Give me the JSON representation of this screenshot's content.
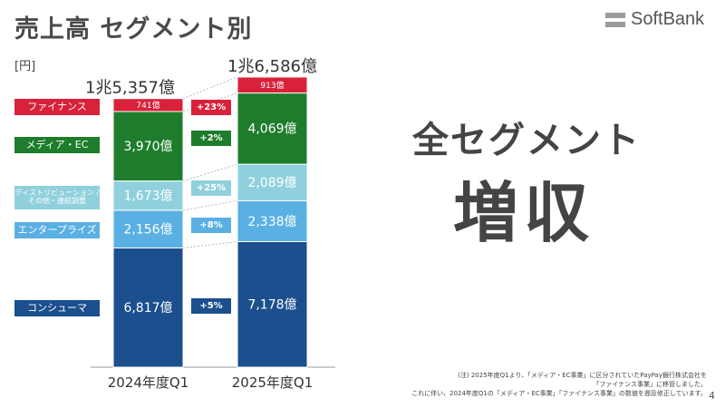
{
  "header": {
    "title": "売上高 セグメント別",
    "unit": "[円]"
  },
  "logo": {
    "text": "SoftBank"
  },
  "headline": {
    "line1": "全セグメント",
    "line2": "増収"
  },
  "note": {
    "line1": "(注) 2025年度Q1より、「メディア・EC事業」に区分されていたPayPay銀行株式会社を",
    "line2": "「ファイナンス事業」に移管しました。",
    "line3": "これに伴い、2024年度Q1の「メディア・EC事業」「ファイナンス事業」の数値を遡及修正しています。"
  },
  "page_number": "4",
  "segments": [
    {
      "label": "ファイナンス",
      "color": "#d9213a",
      "growth": "+23%"
    },
    {
      "label": "メディア・EC",
      "color": "#1e7d2c",
      "growth": "+2%"
    },
    {
      "label": "ディストリビューション / その他・連結調整",
      "label_lines": [
        "ディストリビューション /",
        "その他・連結調整"
      ],
      "color": "#8fd0dc",
      "growth": "+25%"
    },
    {
      "label": "エンタープライズ",
      "color": "#5ab0e2",
      "growth": "+8%"
    },
    {
      "label": "コンシューマ",
      "color": "#1b4f8e",
      "growth": "+5%"
    }
  ],
  "chart_data": {
    "type": "bar",
    "stacked": true,
    "categories": [
      "2024年度Q1",
      "2025年度Q1"
    ],
    "totals": [
      15357,
      16586
    ],
    "total_labels": [
      "1兆5,357億",
      "1兆6,586億"
    ],
    "series": [
      {
        "name": "コンシューマ",
        "values": [
          6817,
          7178
        ],
        "labels": [
          "6,817億",
          "7,178億"
        ],
        "color": "#1b4f8e",
        "text_color": "#ffffff"
      },
      {
        "name": "エンタープライズ",
        "values": [
          2156,
          2338
        ],
        "labels": [
          "2,156億",
          "2,338億"
        ],
        "color": "#5ab0e2",
        "text_color": "#ffffff"
      },
      {
        "name": "ディストリビューション / その他・連結調整",
        "values": [
          1673,
          2089
        ],
        "labels": [
          "1,673億",
          "2,089億"
        ],
        "color": "#8fd0dc",
        "text_color": "#ffffff"
      },
      {
        "name": "メディア・EC",
        "values": [
          3970,
          4069
        ],
        "labels": [
          "3,970億",
          "4,069億"
        ],
        "color": "#1e7d2c",
        "text_color": "#ffffff"
      },
      {
        "name": "ファイナンス",
        "values": [
          741,
          913
        ],
        "labels": [
          "741億",
          "913億"
        ],
        "color": "#d9213a",
        "text_color": "#ffffff"
      }
    ],
    "ylim": [
      0,
      16586
    ]
  }
}
